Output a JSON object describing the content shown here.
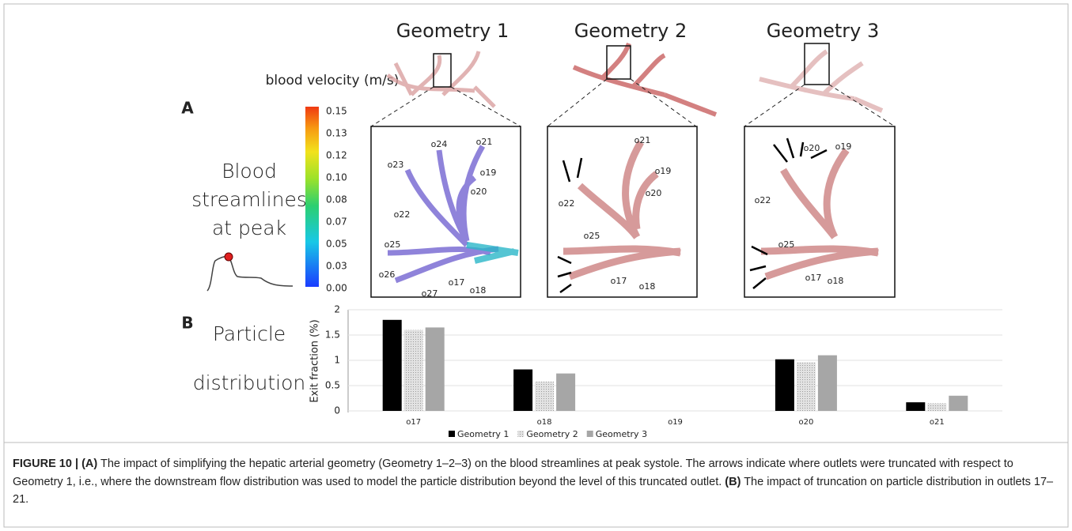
{
  "panel_a": {
    "label": "A",
    "row_title": [
      "Blood",
      "streamlines",
      "at peak"
    ],
    "colorbar_title": "blood velocity (m/s)",
    "colorbar_ticks": [
      "0.15",
      "0.13",
      "0.12",
      "0.10",
      "0.08",
      "0.07",
      "0.05",
      "0.03",
      "0.00"
    ],
    "geometries": [
      {
        "title": "Geometry 1",
        "outlets": [
          "o24",
          "o21",
          "o23",
          "o19",
          "o20",
          "o22",
          "o25",
          "o26",
          "o27",
          "o17",
          "o18"
        ]
      },
      {
        "title": "Geometry 2",
        "outlets": [
          "o21",
          "o19",
          "o20",
          "o22",
          "o25",
          "o17",
          "o18"
        ]
      },
      {
        "title": "Geometry 3",
        "outlets": [
          "o19",
          "o20",
          "o22",
          "o25",
          "o17",
          "o18"
        ]
      }
    ]
  },
  "panel_b": {
    "label": "B",
    "row_title": [
      "Particle",
      "distribution"
    ]
  },
  "chart_data": {
    "type": "bar",
    "y_label": "Exit fraction (%)",
    "categories": [
      "o17",
      "o18",
      "o19",
      "o20",
      "o21"
    ],
    "series": [
      {
        "name": "Geometry 1",
        "color": "#000000",
        "values": [
          1.8,
          0.82,
          0,
          1.02,
          0.17
        ]
      },
      {
        "name": "Geometry 2",
        "color": "#d0d0d0",
        "values": [
          1.6,
          0.58,
          0,
          0.96,
          0.15
        ]
      },
      {
        "name": "Geometry 3",
        "color": "#a6a6a6",
        "values": [
          1.65,
          0.74,
          0,
          1.1,
          0.3
        ]
      }
    ],
    "ylim": [
      0,
      2
    ],
    "yticks": [
      0,
      0.5,
      1,
      1.5,
      2
    ],
    "grid": true
  },
  "caption": {
    "label": "FIGURE 10 |",
    "parts": [
      {
        "tag": "(A)",
        "text": " The impact of simplifying the hepatic arterial geometry (Geometry 1–2–3) on the blood streamlines at peak systole. The arrows indicate where outlets were truncated with respect to Geometry 1, i.e., where the downstream flow distribution was used to model the particle distribution beyond the level of this truncated outlet. "
      },
      {
        "tag": "(B)",
        "text": " The impact of truncation on particle distribution in outlets 17–21."
      }
    ]
  }
}
